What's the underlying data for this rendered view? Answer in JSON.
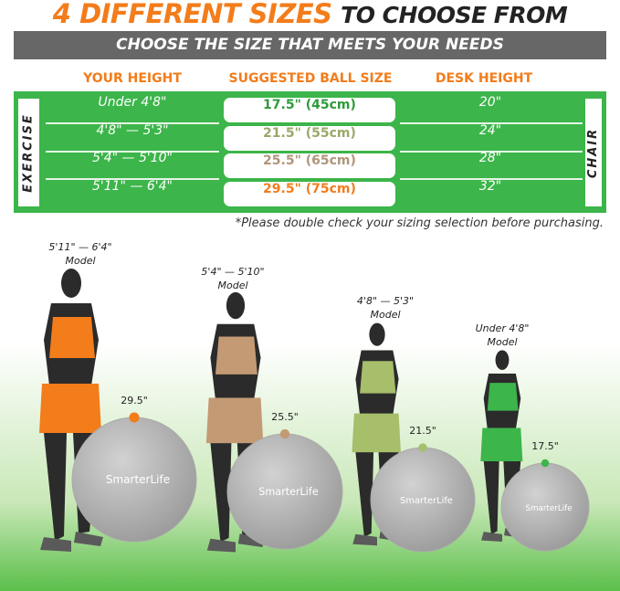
{
  "title": {
    "highlight": "4 DIFFERENT SIZES",
    "rest": "TO CHOOSE FROM"
  },
  "subtitle": "CHOOSE THE SIZE THAT MEETS YOUR NEEDS",
  "headers": {
    "height": "YOUR HEIGHT",
    "ball": "SUGGESTED BALL SIZE",
    "desk": "DESK HEIGHT"
  },
  "side_labels": {
    "left": "EXERCISE",
    "right": "CHAIR"
  },
  "rows": [
    {
      "height": "Under 4'8\"",
      "ball": "17.5\" (45cm)",
      "desk": "20\"",
      "color": "#2f9a3c"
    },
    {
      "height": "4'8\" — 5'3\"",
      "ball": "21.5\" (55cm)",
      "desk": "24\"",
      "color": "#9aa86a"
    },
    {
      "height": "5'4\" — 5'10\"",
      "ball": "25.5\" (65cm)",
      "desk": "28\"",
      "color": "#b0957c"
    },
    {
      "height": "5'11\" — 6'4\"",
      "ball": "29.5\" (75cm)",
      "desk": "32\"",
      "color": "#f37c1b"
    }
  ],
  "note": "*Please double check your sizing selection before purchasing.",
  "models": [
    {
      "range": "5'11\" — 6'4\"",
      "label": "Model",
      "ball": "29.5\"",
      "color": "#f37c1b"
    },
    {
      "range": "5'4\" — 5'10\"",
      "label": "Model",
      "ball": "25.5\"",
      "color": "#c49a74"
    },
    {
      "range": "4'8\" — 5'3\"",
      "label": "Model",
      "ball": "21.5\"",
      "color": "#a7be6a"
    },
    {
      "range": "Under 4'8\"",
      "label": "Model",
      "ball": "17.5\"",
      "color": "#3cb54a"
    }
  ],
  "brand": "SmarterLife"
}
